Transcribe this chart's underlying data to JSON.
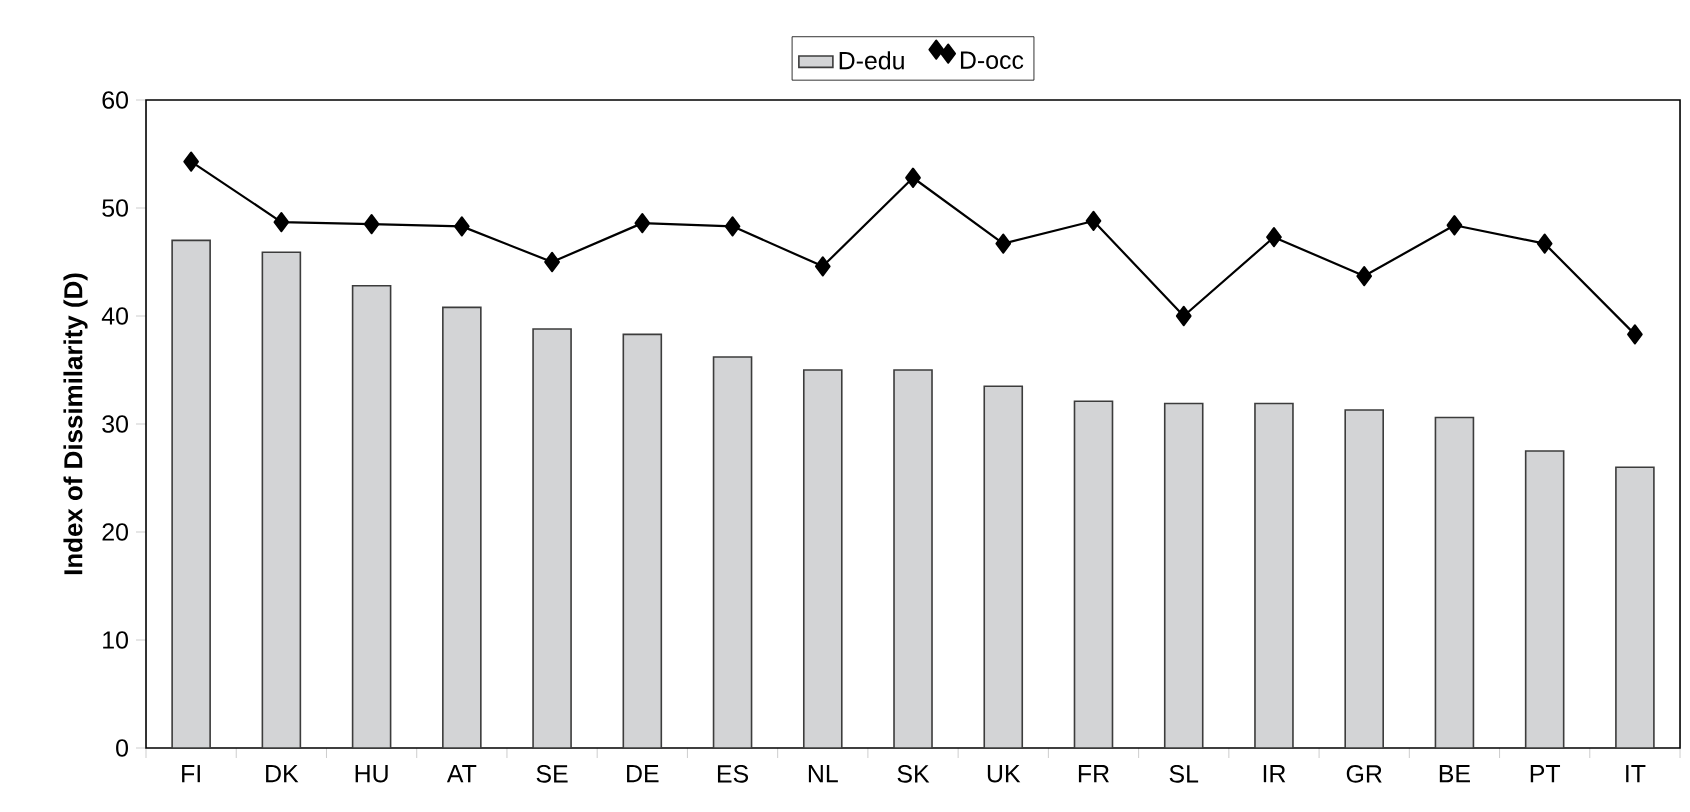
{
  "chart_data": {
    "type": "bar",
    "ylabel": "Index of Dissimilarity (D)",
    "categories": [
      "FI",
      "DK",
      "HU",
      "AT",
      "SE",
      "DE",
      "ES",
      "NL",
      "SK",
      "UK",
      "FR",
      "SL",
      "IR",
      "GR",
      "BE",
      "PT",
      "IT"
    ],
    "series": [
      {
        "name": "D-edu",
        "color": "#d3d4d6",
        "values": [
          47.0,
          45.9,
          42.8,
          40.8,
          38.8,
          38.3,
          36.2,
          35.0,
          35.0,
          33.5,
          32.1,
          31.9,
          31.9,
          31.3,
          30.6,
          27.5,
          26.0
        ]
      },
      {
        "name": "D-occ",
        "type": "line",
        "color": "#000000",
        "marker": "diamond",
        "values": [
          54.3,
          48.7,
          48.5,
          48.3,
          45.0,
          48.6,
          48.3,
          44.6,
          52.8,
          46.7,
          48.8,
          40.0,
          47.3,
          43.7,
          48.4,
          46.7,
          38.3
        ]
      }
    ],
    "ylim": [
      0,
      60
    ],
    "yticks": [
      0,
      10,
      20,
      30,
      40,
      50,
      60
    ],
    "legend": "top"
  }
}
